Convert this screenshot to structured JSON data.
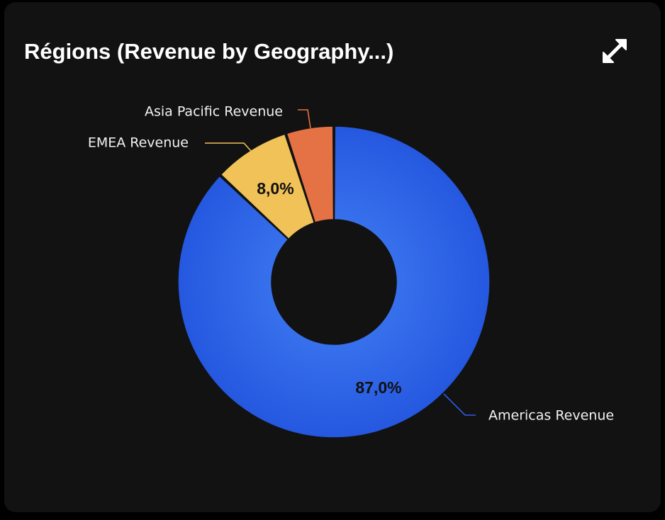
{
  "card": {
    "title": "Régions (Revenue by Geography...)"
  },
  "icons": {
    "expand": "expand-arrows-icon"
  },
  "chart_data": {
    "type": "pie",
    "variant": "donut",
    "title": "Régions (Revenue by Geography...)",
    "categories": [
      "Americas Revenue",
      "EMEA Revenue",
      "Asia Pacific Revenue"
    ],
    "values": [
      87.0,
      8.0,
      5.0
    ],
    "display_labels": [
      "87,0%",
      "8,0%",
      ""
    ],
    "colors": [
      "#2a5fe6",
      "#f0c257",
      "#e57244"
    ],
    "legend": "outside-labels-with-leaders"
  }
}
